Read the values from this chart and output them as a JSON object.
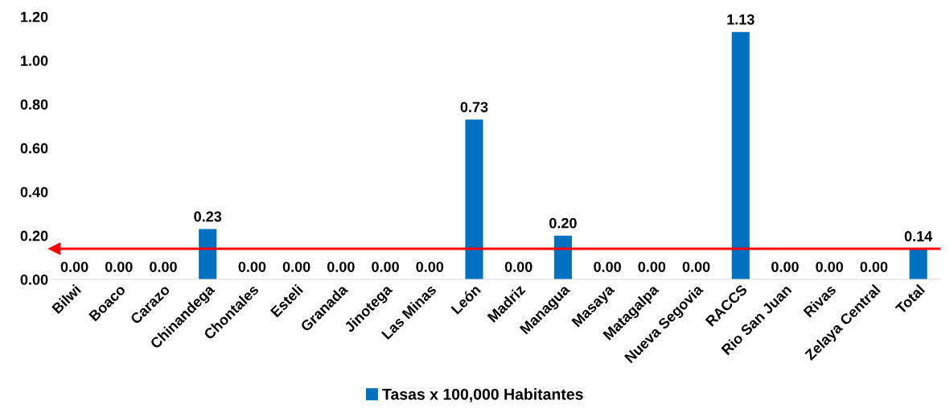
{
  "chart_data": {
    "type": "bar",
    "categories": [
      "Bilwi",
      "Boaco",
      "Carazo",
      "Chinandega",
      "Chontales",
      "Esteli",
      "Granada",
      "Jinotega",
      "Las Minas",
      "León",
      "Madriz",
      "Managua",
      "Masaya",
      "Matagalpa",
      "Nueva Segovia",
      "RACCS",
      "Rio San Juan",
      "Rivas",
      "Zelaya Central",
      "Total"
    ],
    "series": [
      {
        "name": "Tasas x 100,000 Habitantes",
        "color": "#0070c0",
        "values": [
          0,
          0,
          0,
          0.23,
          0,
          0,
          0,
          0,
          0,
          0.73,
          0,
          0.2,
          0,
          0,
          0,
          1.13,
          0,
          0,
          0,
          0.14
        ]
      }
    ],
    "value_labels": [
      "0.00",
      "0.00",
      "0.00",
      "0.23",
      "0.00",
      "0.00",
      "0.00",
      "0.00",
      "0.00",
      "0.73",
      "0.00",
      "0.20",
      "0.00",
      "0.00",
      "0.00",
      "1.13",
      "0.00",
      "0.00",
      "0.00",
      "0.14"
    ],
    "ylim": [
      0,
      1.2
    ],
    "yticks": [
      {
        "value": 0,
        "label": "0.00"
      },
      {
        "value": 0.2,
        "label": "0.20"
      },
      {
        "value": 0.4,
        "label": "0.40"
      },
      {
        "value": 0.6,
        "label": "0.60"
      },
      {
        "value": 0.8,
        "label": "0.80"
      },
      {
        "value": 1.0,
        "label": "1.00"
      },
      {
        "value": 1.2,
        "label": "1.20"
      }
    ],
    "ref_lines": [
      {
        "axis": "y",
        "value": 0.14,
        "color": "#ff0000"
      }
    ],
    "grid": false,
    "legend": "bottom"
  }
}
